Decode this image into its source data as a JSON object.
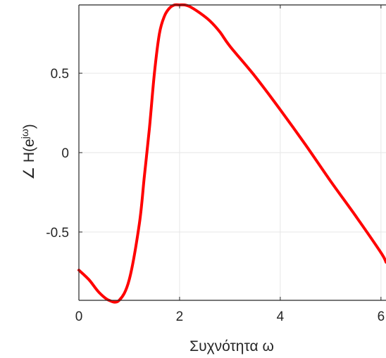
{
  "chart_data": {
    "type": "line",
    "title": "",
    "xlabel": "Συχνότητα ω",
    "ylabel": "∠ H(e^jω)",
    "ylabel_base": "∠ H(e",
    "ylabel_sup": "jω",
    "ylabel_close": ")",
    "xlim": [
      0,
      6.1
    ],
    "ylim": [
      -0.93,
      0.93
    ],
    "xticks": [
      0,
      2,
      4,
      6
    ],
    "xtick_labels": [
      "0",
      "2",
      "4",
      "6"
    ],
    "yticks": [
      -0.5,
      0,
      0.5
    ],
    "ytick_labels": [
      "-0.5",
      "0",
      "0.5"
    ],
    "grid": true,
    "legend": "none",
    "series": [
      {
        "color": "#ff0000",
        "x": [
          0.0,
          0.2,
          0.4,
          0.6,
          0.8,
          1.0,
          1.2,
          1.3,
          1.4,
          1.5,
          1.6,
          1.7,
          1.8,
          1.9,
          2.0,
          2.1,
          2.2,
          2.4,
          2.6,
          2.8,
          3.0,
          3.5,
          4.0,
          4.5,
          5.0,
          5.5,
          6.0,
          6.1
        ],
        "y": [
          -0.74,
          -0.8,
          -0.88,
          -0.93,
          -0.93,
          -0.8,
          -0.45,
          -0.15,
          0.15,
          0.5,
          0.75,
          0.86,
          0.91,
          0.93,
          0.93,
          0.93,
          0.92,
          0.88,
          0.83,
          0.76,
          0.67,
          0.48,
          0.27,
          0.05,
          -0.18,
          -0.4,
          -0.63,
          -0.69
        ]
      }
    ]
  }
}
